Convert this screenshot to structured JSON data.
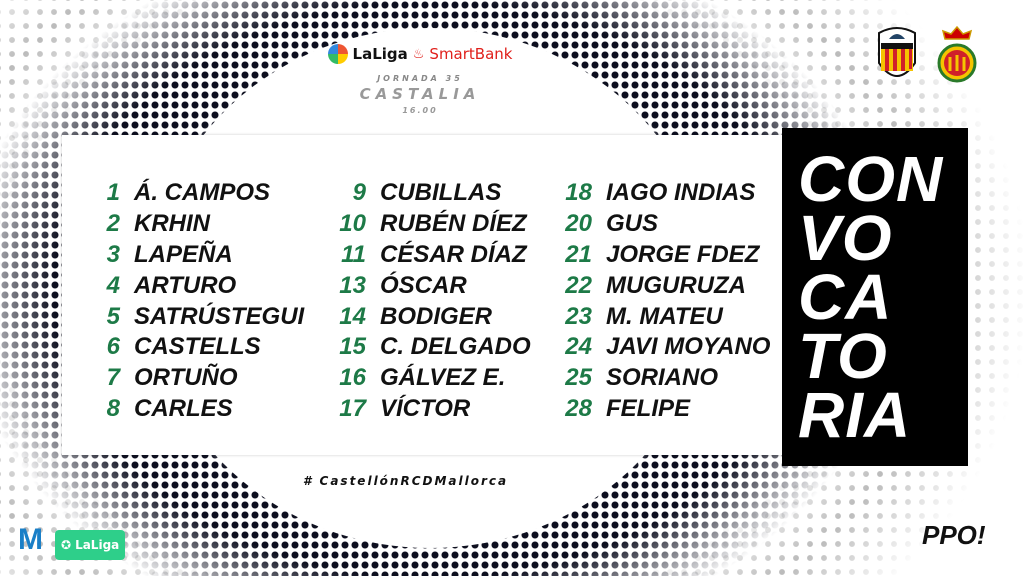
{
  "header": {
    "brand_laliga": "LaLiga",
    "brand_sponsor": "SmartBank",
    "jornada": "JORNADA 35",
    "venue": "CASTALIA",
    "time": "16.00"
  },
  "columns": [
    [
      {
        "n": "1",
        "name": "Á. CAMPOS"
      },
      {
        "n": "2",
        "name": "KRHIN"
      },
      {
        "n": "3",
        "name": "LAPEÑA"
      },
      {
        "n": "4",
        "name": "ARTURO"
      },
      {
        "n": "5",
        "name": "SATRÚSTEGUI"
      },
      {
        "n": "6",
        "name": "CASTELLS"
      },
      {
        "n": "7",
        "name": "ORTUÑO"
      },
      {
        "n": "8",
        "name": "CARLES"
      }
    ],
    [
      {
        "n": "9",
        "name": "CUBILLAS"
      },
      {
        "n": "10",
        "name": "RUBÉN DÍEZ"
      },
      {
        "n": "11",
        "name": "CÉSAR DÍAZ"
      },
      {
        "n": "13",
        "name": "ÓSCAR"
      },
      {
        "n": "14",
        "name": "BODIGER"
      },
      {
        "n": "15",
        "name": "C. DELGADO"
      },
      {
        "n": "16",
        "name": "GÁLVEZ E."
      },
      {
        "n": "17",
        "name": "VÍCTOR"
      }
    ],
    [
      {
        "n": "18",
        "name": "IAGO INDIAS"
      },
      {
        "n": "20",
        "name": "GUS"
      },
      {
        "n": "21",
        "name": "JORGE FDEZ"
      },
      {
        "n": "22",
        "name": "MUGURUZA"
      },
      {
        "n": "23",
        "name": "M. MATEU"
      },
      {
        "n": "24",
        "name": "JAVI MOYANO"
      },
      {
        "n": "25",
        "name": "SORIANO"
      },
      {
        "n": "28",
        "name": "FELIPE"
      }
    ]
  ],
  "side_title": [
    "CON",
    "VO",
    "CA",
    "TO",
    "RIA"
  ],
  "hashtag": "# CastellónRCDMallorca",
  "crests": {
    "home": "CD CASTELLÓN",
    "away": "RCD Mallorca"
  },
  "footer": {
    "broadcaster": "M",
    "laliga_badge": "LaLiga",
    "signature": "PPO!"
  },
  "colors": {
    "number": "#1d7a47",
    "sponsor": "#e0201b",
    "badge": "#2ecf8a"
  }
}
